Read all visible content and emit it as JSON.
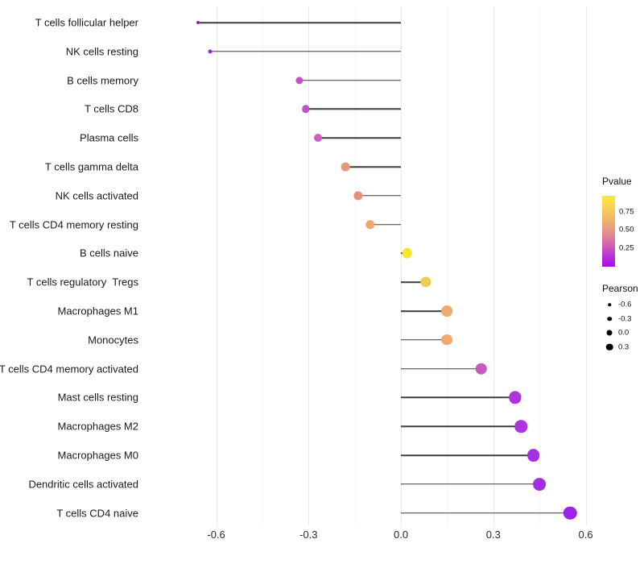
{
  "chart_data": {
    "type": "lollipop",
    "title": "",
    "xlabel": "",
    "ylabel": "",
    "xlim": [
      -0.68,
      0.6326
    ],
    "x_ticks": [
      {
        "value": -0.6,
        "label": "-0.6"
      },
      {
        "value": -0.3,
        "label": "-0.3"
      },
      {
        "value": 0.0,
        "label": "0.0"
      },
      {
        "value": 0.3,
        "label": "0.3"
      },
      {
        "value": 0.6,
        "label": "0.6"
      }
    ],
    "x_minor_ticks": [
      -0.45,
      -0.15,
      0.15,
      0.45
    ],
    "grid": true,
    "baseline_x": 0,
    "points": [
      {
        "label": "T cells follicular helper",
        "pearson": -0.66,
        "pvalue": 0.1,
        "color": "#8d1bd1"
      },
      {
        "label": "NK cells resting",
        "pearson": -0.62,
        "pvalue": 0.12,
        "color": "#9a2ad6"
      },
      {
        "label": "B cells memory",
        "pearson": -0.33,
        "pvalue": 0.3,
        "color": "#c553c5"
      },
      {
        "label": "T cells CD8",
        "pearson": -0.31,
        "pvalue": 0.3,
        "color": "#c24fc7"
      },
      {
        "label": "Plasma cells",
        "pearson": -0.27,
        "pvalue": 0.33,
        "color": "#cb5ec0"
      },
      {
        "label": "T cells gamma delta",
        "pearson": -0.18,
        "pvalue": 0.55,
        "color": "#e9967f"
      },
      {
        "label": "NK cells activated",
        "pearson": -0.14,
        "pvalue": 0.55,
        "color": "#e78f79"
      },
      {
        "label": "T cells CD4 memory resting",
        "pearson": -0.1,
        "pvalue": 0.63,
        "color": "#ecab69"
      },
      {
        "label": "B cells naive",
        "pearson": 0.02,
        "pvalue": 0.9,
        "color": "#f8e62c"
      },
      {
        "label": "T cells regulatory  Tregs",
        "pearson": 0.08,
        "pvalue": 0.75,
        "color": "#f2cd55"
      },
      {
        "label": "Macrophages M1",
        "pearson": 0.15,
        "pvalue": 0.62,
        "color": "#efa971"
      },
      {
        "label": "Monocytes",
        "pearson": 0.15,
        "pvalue": 0.62,
        "color": "#efa971"
      },
      {
        "label": "T cells CD4 memory activated",
        "pearson": 0.26,
        "pvalue": 0.32,
        "color": "#c75bbd"
      },
      {
        "label": "Mast cells resting",
        "pearson": 0.37,
        "pvalue": 0.13,
        "color": "#aa36dc"
      },
      {
        "label": "Macrophages M2",
        "pearson": 0.39,
        "pvalue": 0.13,
        "color": "#aa36dc"
      },
      {
        "label": "Macrophages M0",
        "pearson": 0.43,
        "pvalue": 0.11,
        "color": "#a630e0"
      },
      {
        "label": "Dendritic cells activated",
        "pearson": 0.45,
        "pvalue": 0.11,
        "color": "#a52fe0"
      },
      {
        "label": "T cells CD4 naive",
        "pearson": 0.55,
        "pvalue": 0.08,
        "color": "#9e23e6"
      }
    ],
    "legend_position": "right"
  },
  "legend": {
    "pvalue": {
      "title": "Pvalue",
      "ticks": [
        {
          "label": "0.75",
          "frac_from_top": 0.23
        },
        {
          "label": "0.50",
          "frac_from_top": 0.48
        },
        {
          "label": "0.25",
          "frac_from_top": 0.74
        }
      ],
      "gradient_top_color": "#fbe93b",
      "gradient_bottom_color": "#a60cf0"
    },
    "pearson": {
      "title": "Pearson",
      "items": [
        {
          "label": "-0.6",
          "diameter": 3.5
        },
        {
          "label": "-0.3",
          "diameter": 5.5
        },
        {
          "label": "0.0",
          "diameter": 7.0
        },
        {
          "label": "0.3",
          "diameter": 8.5
        }
      ]
    }
  }
}
